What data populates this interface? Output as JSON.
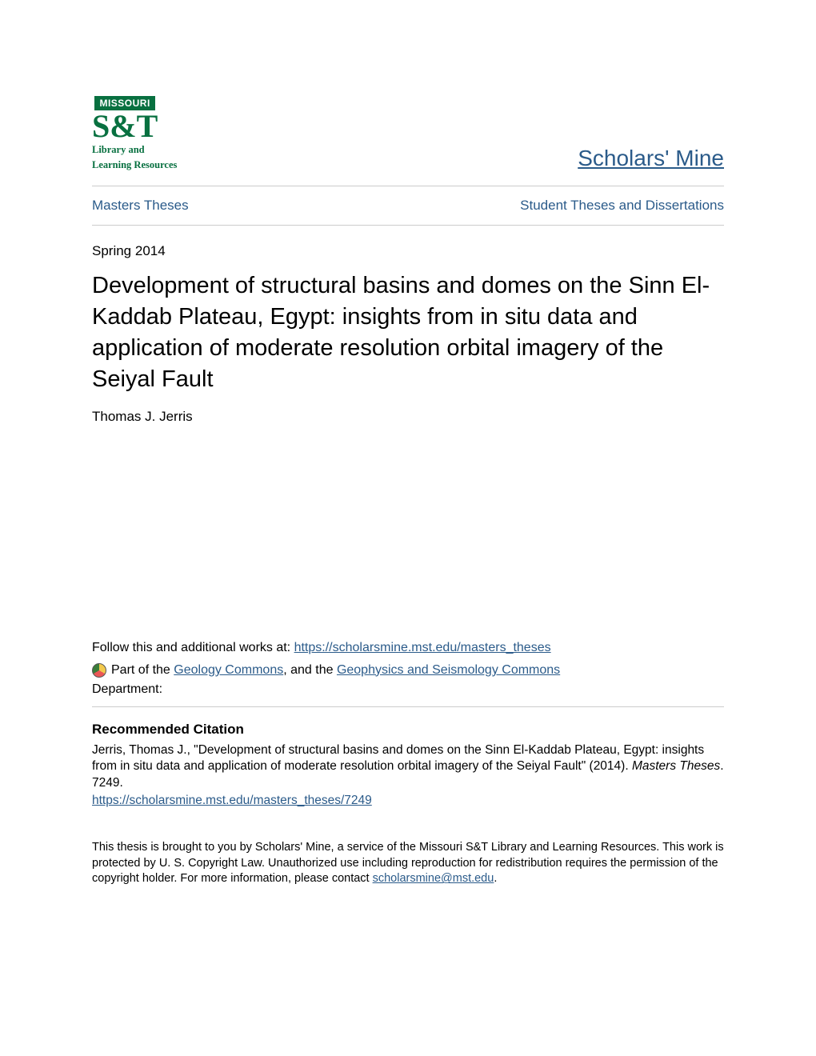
{
  "header": {
    "logo": {
      "missouri_label": "MISSOURI",
      "st_label": "S&T",
      "library_line1": "Library and",
      "library_line2": "Learning Resources"
    },
    "site_title": "Scholars' Mine"
  },
  "nav": {
    "left": "Masters Theses",
    "right": "Student Theses and Dissertations"
  },
  "date": "Spring 2014",
  "title": "Development of structural basins and domes on the Sinn El-Kaddab Plateau, Egypt: insights from in situ data and application of moderate resolution orbital imagery of the Seiyal Fault",
  "author": "Thomas J. Jerris",
  "follow": {
    "prefix": "Follow this and additional works at: ",
    "url": "https://scholarsmine.mst.edu/masters_theses"
  },
  "partof": {
    "prefix": "Part of the ",
    "link1": "Geology Commons",
    "mid": ", and the ",
    "link2": "Geophysics and Seismology Commons"
  },
  "department_label": "Department:",
  "recommended": {
    "heading": "Recommended Citation",
    "citation_line1": "Jerris, Thomas J., \"Development of structural basins and domes on the Sinn El-Kaddab Plateau, Egypt: insights from in situ data and application of moderate resolution orbital imagery of the Seiyal Fault\" (2014). ",
    "citation_italic": "Masters Theses",
    "citation_line2": ". 7249.",
    "url": "https://scholarsmine.mst.edu/masters_theses/7249"
  },
  "footer": {
    "text_before": "This thesis is brought to you by Scholars' Mine, a service of the Missouri S&T Library and Learning Resources. This work is protected by U. S. Copyright Law. Unauthorized use including reproduction for redistribution requires the permission of the copyright holder. For more information, please contact ",
    "email": "scholarsmine@mst.edu",
    "text_after": "."
  },
  "colors": {
    "link": "#2b5b8a",
    "brand_green": "#087040",
    "divider": "#cccccc",
    "text": "#000000",
    "background": "#ffffff"
  }
}
